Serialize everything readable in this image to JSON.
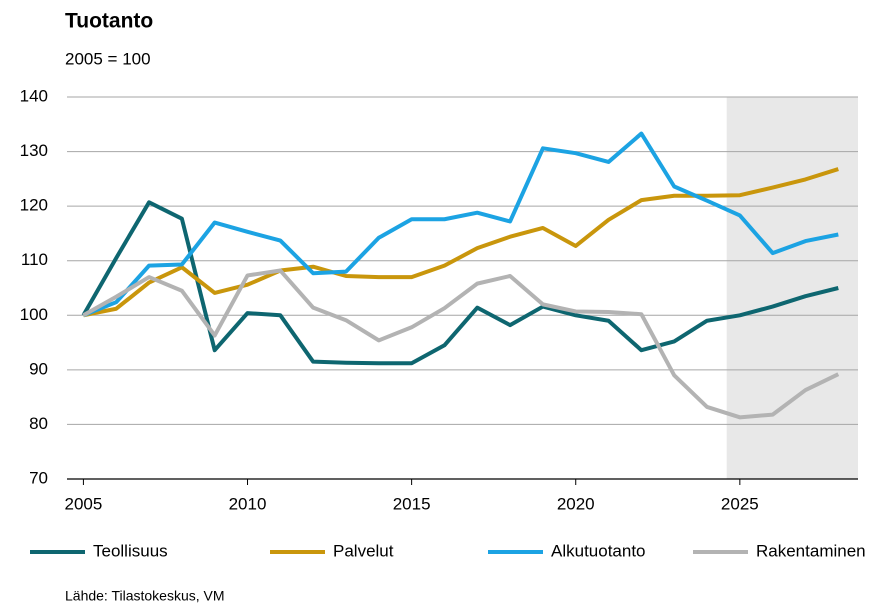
{
  "chart_data": {
    "type": "line",
    "title": "Tuotanto",
    "subtitle": "2005 = 100",
    "source": "Lähde: Tilastokeskus, VM",
    "x": [
      2005,
      2006,
      2007,
      2008,
      2009,
      2010,
      2011,
      2012,
      2013,
      2014,
      2015,
      2016,
      2017,
      2018,
      2019,
      2020,
      2021,
      2022,
      2023,
      2024,
      2025,
      2026,
      2027,
      2028
    ],
    "series": [
      {
        "name": "Teollisuus",
        "color": "#0e6670",
        "values": [
          100,
          110.5,
          120.7,
          117.7,
          93.6,
          100.4,
          100,
          91.5,
          91.3,
          91.2,
          91.2,
          94.5,
          101.4,
          98.2,
          101.6,
          100,
          99,
          93.6,
          95.2,
          99,
          100,
          101.6,
          103.5,
          105
        ]
      },
      {
        "name": "Palvelut",
        "color": "#c9960c",
        "values": [
          100,
          101.2,
          106,
          108.8,
          104.1,
          105.6,
          108.2,
          108.9,
          107.2,
          107,
          107,
          109.1,
          112.3,
          114.4,
          116,
          112.7,
          117.5,
          121.1,
          121.9,
          121.9,
          122,
          123.4,
          124.9,
          126.8
        ]
      },
      {
        "name": "Alkutuotanto",
        "color": "#1ca3e3",
        "values": [
          100,
          102.4,
          109.1,
          109.3,
          117,
          115.3,
          113.7,
          107.7,
          108,
          114.2,
          117.6,
          117.6,
          118.8,
          117.2,
          130.6,
          129.7,
          128.1,
          133.3,
          123.6,
          121,
          118.3,
          111.4,
          113.6,
          114.8
        ]
      },
      {
        "name": "Rakentaminen",
        "color": "#b3b3b3",
        "values": [
          100,
          103.4,
          107,
          104.5,
          96.3,
          107.3,
          108.2,
          101.4,
          99.1,
          95.4,
          97.8,
          101.3,
          105.8,
          107.2,
          102,
          100.7,
          100.6,
          100.2,
          89,
          83.2,
          81.3,
          81.8,
          86.3,
          89.2
        ]
      }
    ],
    "xlim": [
      2004.5,
      2028.6
    ],
    "xticks": [
      2005,
      2010,
      2015,
      2020,
      2025
    ],
    "ylim": [
      70,
      140
    ],
    "yticks": [
      70,
      80,
      90,
      100,
      110,
      120,
      130,
      140
    ],
    "grid": true,
    "shaded_from": 2024.6,
    "shade_color": "#e8e8e8",
    "legend": "bottom"
  }
}
